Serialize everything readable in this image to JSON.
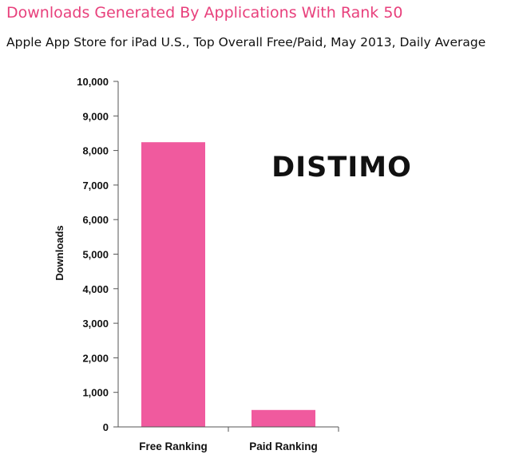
{
  "title": "Downloads Generated By Applications With Rank 50",
  "subtitle": "Apple App Store for iPad U.S., Top Overall Free/Paid, May 2013, Daily Average",
  "logo_text": "DISTIMO",
  "colors": {
    "title": "#e8407c",
    "bar": "#f05a9e",
    "axis": "#555555"
  },
  "chart_data": {
    "type": "bar",
    "categories": [
      "Free Ranking",
      "Paid Ranking"
    ],
    "values": [
      8240,
      490
    ],
    "ylabel": "Downloads",
    "xlabel": "",
    "ylim": [
      0,
      10000
    ],
    "yticks": [
      "0",
      "1,000",
      "2,000",
      "3,000",
      "4,000",
      "5,000",
      "6,000",
      "7,000",
      "8,000",
      "9,000",
      "10,000"
    ],
    "grid": false,
    "legend": "none"
  }
}
